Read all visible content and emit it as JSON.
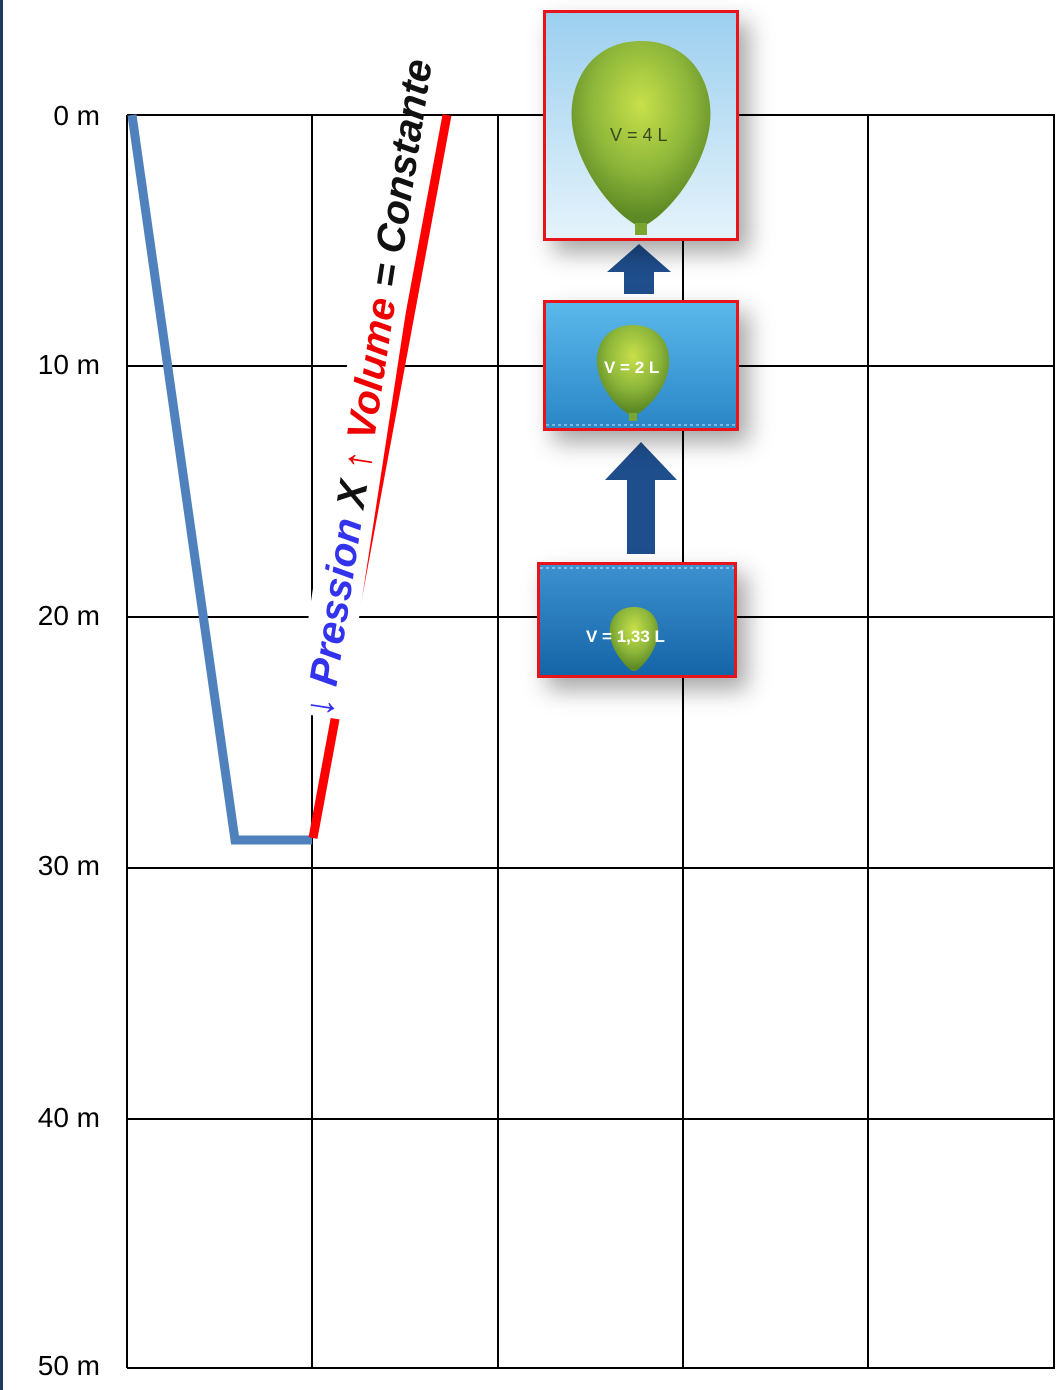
{
  "depth_axis": {
    "labels": [
      "0 m",
      "10 m",
      "20 m",
      "30 m",
      "40 m",
      "50 m"
    ]
  },
  "formula": {
    "pressure_arrow": "↓",
    "pressure": "Pression",
    "times": "X",
    "volume_arrow": "↑",
    "volume": "Volume",
    "equals": "=",
    "constant": "Constante"
  },
  "balloons": [
    {
      "label": "V = 4 L"
    },
    {
      "label": "V = 2 L"
    },
    {
      "label": "V = 1,33 L"
    }
  ],
  "colors": {
    "pressure_line": "#4f81bd",
    "volume_line": "#ff0000",
    "panel_border": "#e8141b",
    "arrow": "#1f4e8c",
    "balloon": "#8db63a"
  }
}
